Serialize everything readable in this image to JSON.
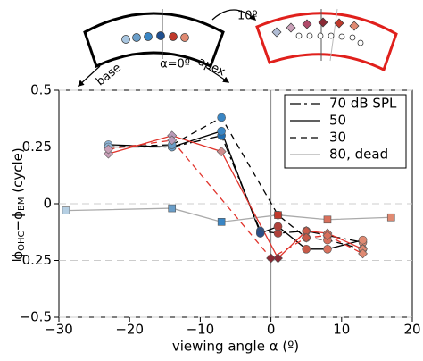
{
  "chart_data": {
    "type": "line",
    "diagram": {
      "left_labels": [
        "base",
        "α=0º",
        "apex"
      ],
      "rotation_label": "10º"
    },
    "x_label": "viewing angle α (º)",
    "y_label_parts": [
      "ϕ",
      "OHC",
      "−ϕ",
      "BM",
      " (cycle)"
    ],
    "xlim": [
      -30,
      20
    ],
    "xticks": [
      {
        "value": -30,
        "label": "−30"
      },
      {
        "value": -20,
        "label": "−20"
      },
      {
        "value": -10,
        "label": "−10"
      },
      0,
      10,
      20
    ],
    "ylim": [
      -0.5,
      0.5
    ],
    "yticks": [
      {
        "value": -0.5,
        "label": "−0.5"
      },
      {
        "value": -0.25,
        "label": "−0.25"
      },
      0,
      0.25,
      0.5
    ],
    "grid": true,
    "reference_x": 0,
    "legend": "upper right",
    "series": [
      {
        "name": "70 dB SPL",
        "color": "#000000",
        "dash": "dashdot",
        "marker": "circle",
        "x": [
          -23,
          -14,
          -7,
          -1.5,
          1,
          5,
          8,
          13
        ],
        "values": [
          0.25,
          0.25,
          0.3,
          -0.12,
          -0.13,
          -0.12,
          -0.14,
          -0.17
        ],
        "marker_colors": [
          "#8db4d6",
          "#6a9ec9",
          "#1f6db0",
          "#2c4f86",
          "#b0413a",
          "#c85a48",
          "#d8705c",
          "#e08a72"
        ]
      },
      {
        "name": "50",
        "color": "#000000",
        "dash": "solid",
        "marker": "circle",
        "x": [
          -23,
          -14,
          -7,
          -1.5,
          1,
          5,
          8,
          13
        ],
        "values": [
          0.26,
          0.25,
          0.32,
          -0.13,
          -0.1,
          -0.2,
          -0.2,
          -0.16
        ],
        "marker_colors": [
          "#8db4d6",
          "#6a9ec9",
          "#3a86c4",
          "#2c4f86",
          "#b0413a",
          "#c85a48",
          "#d8705c",
          "#e08a72"
        ]
      },
      {
        "name": "30",
        "color": "#000000",
        "dash": "dashed",
        "marker": "circle",
        "x": [
          -23,
          -14,
          -7,
          1,
          5,
          8,
          13
        ],
        "values": [
          0.25,
          0.26,
          0.38,
          -0.05,
          -0.15,
          -0.16,
          -0.2
        ],
        "marker_colors": [
          "#8db4d6",
          "#6a9ec9",
          "#3a86c4",
          "#b0413a",
          "#c85a48",
          "#d8705c",
          "#e08a72"
        ]
      },
      {
        "name": "80, dead",
        "color": "#aaaaaa",
        "dash": "solid",
        "marker": "square",
        "x": [
          -29,
          -14,
          -7,
          1,
          8,
          17
        ],
        "values": [
          -0.03,
          -0.02,
          -0.08,
          -0.05,
          -0.07,
          -0.06
        ],
        "marker_colors": [
          "#b5cfe3",
          "#6a9ec9",
          "#3a86c4",
          "#c0392b",
          "#d8705c",
          "#e08a72"
        ]
      },
      {
        "color": "#e0342c",
        "dash": "solid",
        "marker": "diamond",
        "x": [
          -23,
          -14,
          -7,
          1,
          5,
          8,
          13
        ],
        "values": [
          0.22,
          0.3,
          0.23,
          -0.24,
          -0.12,
          -0.13,
          -0.2
        ],
        "marker_colors": [
          "#c9a0b8",
          "#b99ab8",
          "#cf8d8d",
          "#8a2a35",
          "#c85a48",
          "#d8705c",
          "#e08a72"
        ]
      },
      {
        "color": "#e0342c",
        "dash": "dashed",
        "marker": "diamond",
        "x": [
          -23,
          -14,
          0,
          5,
          8,
          13
        ],
        "values": [
          0.24,
          0.28,
          -0.24,
          -0.15,
          -0.14,
          -0.22
        ],
        "marker_colors": [
          "#c9a0b8",
          "#b99ab8",
          "#8a2a35",
          "#c85a48",
          "#d8705c",
          "#e08a72"
        ]
      }
    ]
  }
}
